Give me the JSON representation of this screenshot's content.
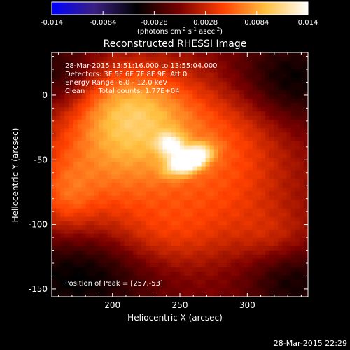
{
  "chart_data": {
    "type": "heatmap",
    "title": "Reconstructed RHESSI Image",
    "xlabel": "Heliocentric X (arcsec)",
    "ylabel": "Heliocentric Y (arcsec)",
    "xlim": [
      155,
      345
    ],
    "ylim": [
      -156,
      33
    ],
    "x_ticks": [
      200,
      250,
      300
    ],
    "y_ticks": [
      0,
      -50,
      -100,
      -150
    ],
    "colorbar": {
      "min": -0.014,
      "max": 0.014,
      "ticks": [
        "-0.014",
        "-0.0084",
        "-0.0028",
        "0.0028",
        "0.0084",
        "0.014"
      ],
      "unit_prefix": "(photons cm",
      "unit_exp1": "-2",
      "unit_mid": " s",
      "unit_exp2": "-1",
      "unit_mid2": " asec",
      "unit_exp3": "-2",
      "unit_suffix": ")",
      "colors": [
        "#0000ff",
        "#3a2080",
        "#000000",
        "#7a0000",
        "#ff4000",
        "#ffc040",
        "#ffffff"
      ]
    },
    "info_lines": [
      "28-Mar-2015 13:51:16.000 to 13:55:04.000",
      "Detectors: 3F 5F 6F 7F 8F 9F, Att 0",
      "Energy Range: 6.0 - 12.0 keV",
      "Clean      Total counts: 1.77E+04"
    ],
    "peak_label": "Position of Peak = [257,-53]",
    "peak": {
      "x": 257,
      "y": -53
    },
    "sources": [
      {
        "x": 257,
        "y": -50,
        "sx": 11,
        "sy": 6,
        "angle": 25,
        "amp": 0.014
      },
      {
        "x": 243,
        "y": -38,
        "sx": 7,
        "sy": 6,
        "angle": 0,
        "amp": 0.007
      },
      {
        "x": 228,
        "y": -25,
        "sx": 40,
        "sy": 30,
        "angle": 0,
        "amp": 0.0055
      },
      {
        "x": 195,
        "y": -60,
        "sx": 40,
        "sy": 35,
        "angle": 0,
        "amp": 0.0045
      },
      {
        "x": 210,
        "y": -5,
        "sx": 30,
        "sy": 22,
        "angle": 0,
        "amp": 0.004
      },
      {
        "x": 285,
        "y": -75,
        "sx": 35,
        "sy": 30,
        "angle": 0,
        "amp": 0.0035
      },
      {
        "x": 300,
        "y": -20,
        "sx": 28,
        "sy": 28,
        "angle": 0,
        "amp": 0.0025
      },
      {
        "x": 240,
        "y": -110,
        "sx": 30,
        "sy": 20,
        "angle": 0,
        "amp": 0.0028
      },
      {
        "x": 165,
        "y": -80,
        "sx": 15,
        "sy": 20,
        "angle": 0,
        "amp": 0.003
      },
      {
        "x": 320,
        "y": -110,
        "sx": 20,
        "sy": 15,
        "angle": 0,
        "amp": 0.002
      }
    ],
    "negative_regions": [
      {
        "x": 330,
        "y": 10,
        "sx": 30,
        "sy": 25,
        "amp": -0.005
      },
      {
        "x": 175,
        "y": -140,
        "sx": 40,
        "sy": 25,
        "amp": -0.005
      },
      {
        "x": 160,
        "y": 15,
        "sx": 20,
        "sy": 20,
        "amp": -0.004
      },
      {
        "x": 335,
        "y": -145,
        "sx": 25,
        "sy": 20,
        "amp": -0.004
      }
    ]
  },
  "footer_timestamp": "28-Mar-2015 22:29"
}
